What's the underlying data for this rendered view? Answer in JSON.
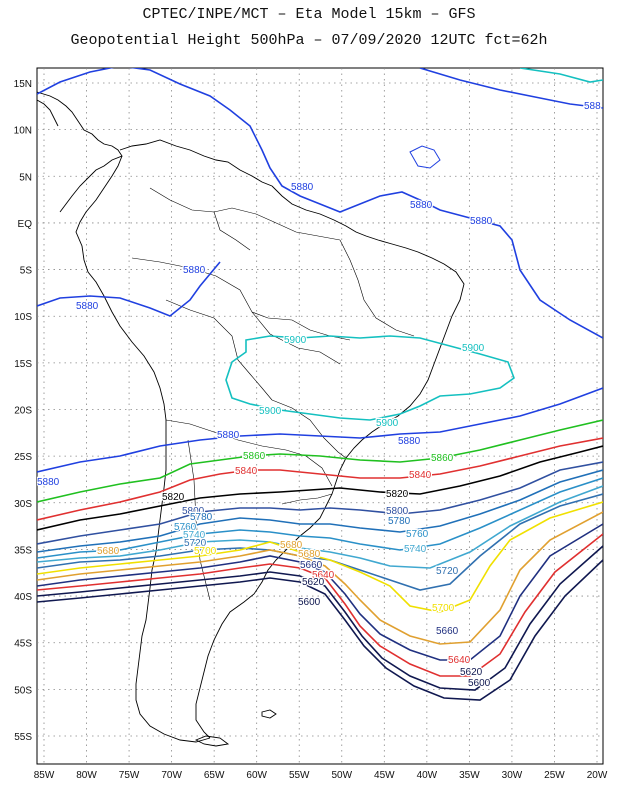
{
  "title_line1": "CPTEC/INPE/MCT –  Eta Model 15km – GFS",
  "title_line2": "Geopotential Height 500hPa – 07/09/2020 12UTC fct=62h",
  "lat_labels": [
    "15N",
    "10N",
    "5N",
    "EQ",
    "5S",
    "10S",
    "15S",
    "20S",
    "25S",
    "30S",
    "35S",
    "40S",
    "45S",
    "50S",
    "55S"
  ],
  "lon_labels": [
    "85W",
    "80W",
    "75W",
    "70W",
    "65W",
    "60W",
    "55W",
    "50W",
    "45W",
    "40W",
    "35W",
    "30W",
    "25W",
    "20W"
  ],
  "colors": {
    "c5900": "#14c0c0",
    "c5880": "#2040e0",
    "c5860": "#20c020",
    "c5840": "#e03030",
    "c5820": "#000000",
    "c5800": "#3050a0",
    "c5780": "#2070b8",
    "c5760": "#2a90c8",
    "c5740": "#40a8d0",
    "c5720": "#3070b0",
    "c5700": "#f0e000",
    "c5680": "#e0a030",
    "c5660": "#203080",
    "c5640": "#e03030",
    "c5620": "#101850",
    "coast": "#000000"
  },
  "contour_labels": [
    {
      "id": "l5880a",
      "text": "5880"
    },
    {
      "id": "l5880b",
      "text": "5880"
    },
    {
      "id": "l5880c",
      "text": "5880"
    },
    {
      "id": "l5880d",
      "text": "5880"
    },
    {
      "id": "l5880e",
      "text": "5880"
    },
    {
      "id": "l5880f",
      "text": "5880"
    },
    {
      "id": "l5880g",
      "text": "5880"
    },
    {
      "id": "l5880h",
      "text": "5880"
    },
    {
      "id": "l5880i",
      "text": "588"
    },
    {
      "id": "l5900a",
      "text": "5900"
    },
    {
      "id": "l5900b",
      "text": "5900"
    },
    {
      "id": "l5900c",
      "text": "5900"
    },
    {
      "id": "l5900d",
      "text": "5900"
    },
    {
      "id": "l5860a",
      "text": "5860"
    },
    {
      "id": "l5860b",
      "text": "5860"
    },
    {
      "id": "l5840a",
      "text": "5840"
    },
    {
      "id": "l5840b",
      "text": "5840"
    },
    {
      "id": "l5820a",
      "text": "5820"
    },
    {
      "id": "l5820b",
      "text": "5820"
    },
    {
      "id": "l5800a",
      "text": "5800"
    },
    {
      "id": "l5800b",
      "text": "5800"
    },
    {
      "id": "l5780a",
      "text": "5780"
    },
    {
      "id": "l5780b",
      "text": "5780"
    },
    {
      "id": "l5760a",
      "text": "5760"
    },
    {
      "id": "l5760b",
      "text": "5760"
    },
    {
      "id": "l5740a",
      "text": "5740"
    },
    {
      "id": "l5740b",
      "text": "5740"
    },
    {
      "id": "l5720a",
      "text": "5720"
    },
    {
      "id": "l5720b",
      "text": "5720"
    },
    {
      "id": "l5700a",
      "text": "5700"
    },
    {
      "id": "l5700b",
      "text": "5700"
    },
    {
      "id": "l5680a",
      "text": "5680"
    },
    {
      "id": "l5680b",
      "text": "5680"
    },
    {
      "id": "l5680c",
      "text": "5680"
    },
    {
      "id": "l5660a",
      "text": "5660"
    },
    {
      "id": "l5660b",
      "text": "5660"
    },
    {
      "id": "l5640a",
      "text": "5640"
    },
    {
      "id": "l5640b",
      "text": "5640"
    },
    {
      "id": "l5620a",
      "text": "5620"
    },
    {
      "id": "l5620b",
      "text": "5620"
    },
    {
      "id": "l5600a",
      "text": "5600"
    },
    {
      "id": "l5600b",
      "text": "5600"
    }
  ]
}
